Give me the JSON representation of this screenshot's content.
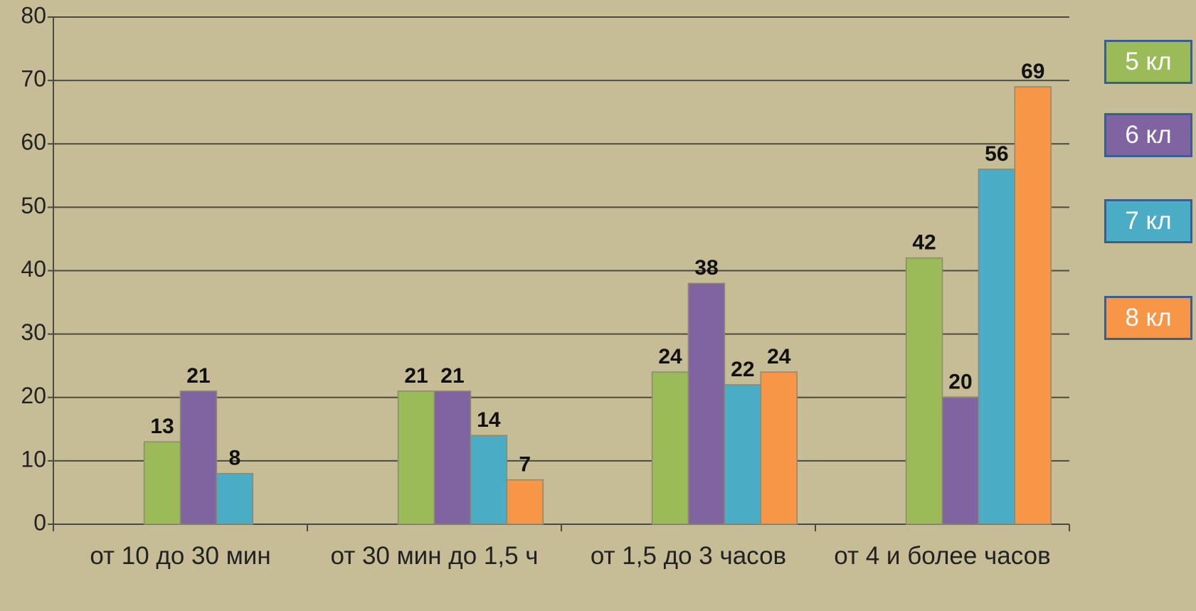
{
  "chart_data": {
    "type": "bar",
    "categories": [
      "от 10 до 30 мин",
      "от 30 мин до 1,5 ч",
      "от 1,5 до 3 часов",
      "от 4 и более часов"
    ],
    "series": [
      {
        "name": "5 кл",
        "color": "#9bbb59",
        "values": [
          13,
          21,
          24,
          42
        ]
      },
      {
        "name": "6 кл",
        "color": "#8064a2",
        "values": [
          21,
          21,
          38,
          20
        ]
      },
      {
        "name": "7 кл",
        "color": "#4bacc6",
        "values": [
          8,
          14,
          22,
          56
        ]
      },
      {
        "name": "8 кл",
        "color": "#f79646",
        "values": [
          null,
          7,
          24,
          69
        ]
      }
    ],
    "ylim": [
      0,
      80
    ],
    "yticks": [
      0,
      10,
      20,
      30,
      40,
      50,
      60,
      70,
      80
    ],
    "grid": true,
    "legend": "right"
  }
}
